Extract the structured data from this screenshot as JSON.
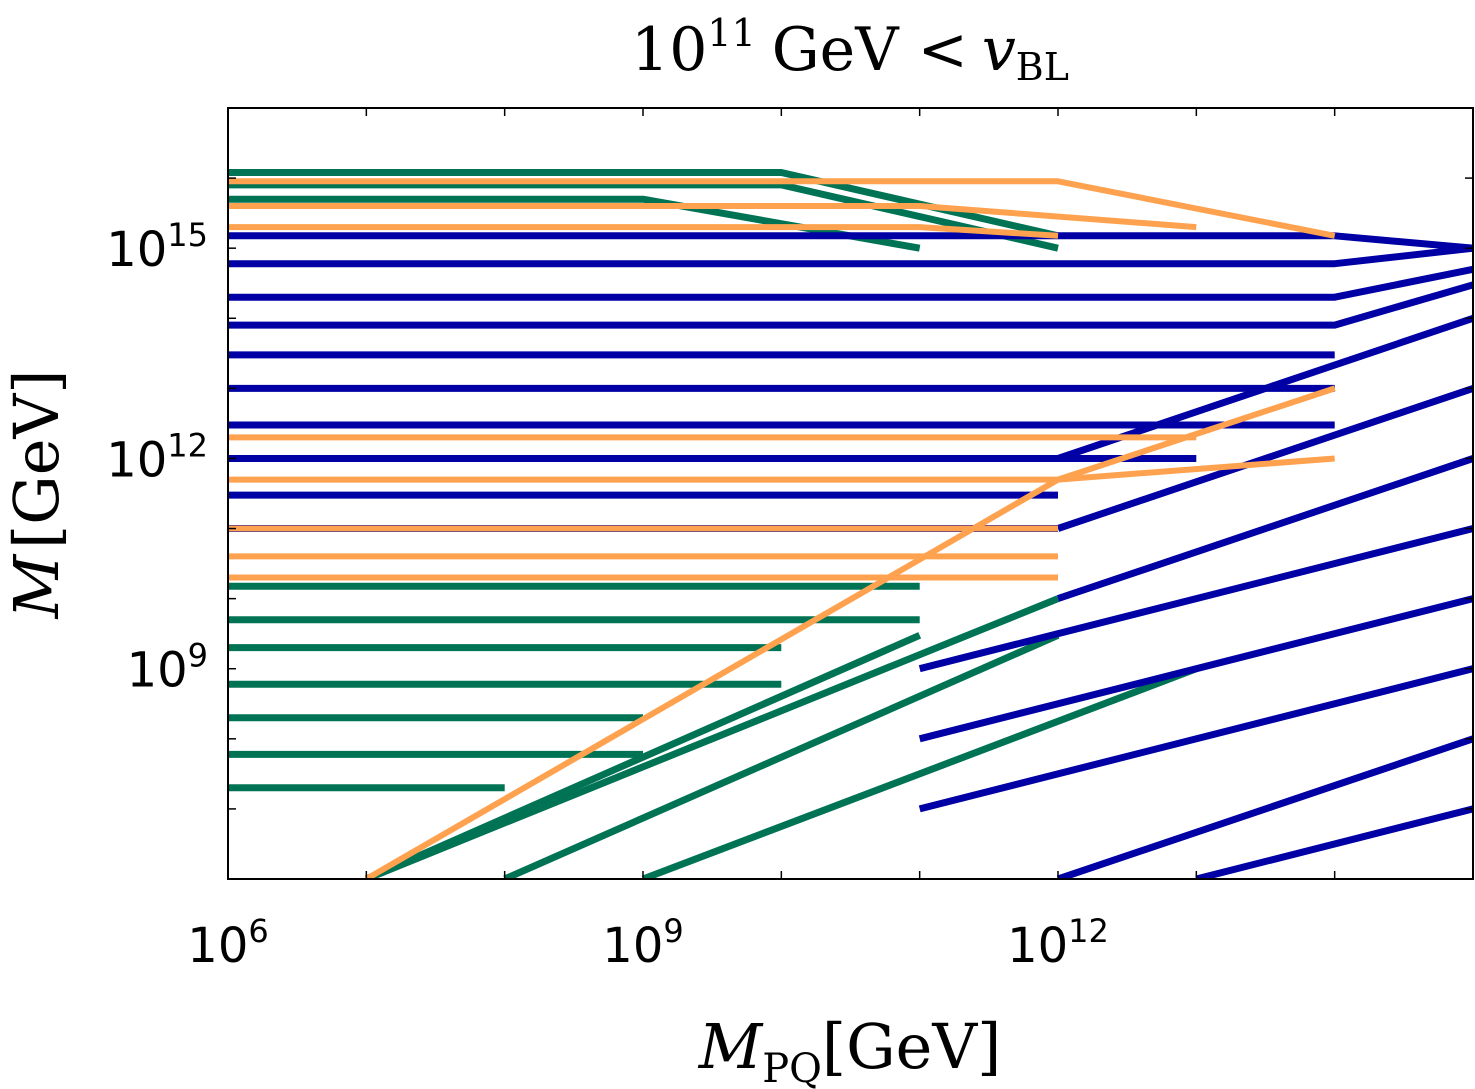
{
  "chart_data": {
    "type": "line",
    "title": {
      "base": "10",
      "exp": "11",
      "mid": "GeV <",
      "var": "v",
      "sub": "BL"
    },
    "xlabel": {
      "var": "M",
      "sub": "PQ",
      "unit": "[GeV]"
    },
    "ylabel": {
      "var": "M",
      "unit": "[GeV]"
    },
    "x_scale": "log",
    "y_scale": "log",
    "xlim": [
      1000000.0,
      1000000000000000.0
    ],
    "ylim": [
      1000000.0,
      1e+17
    ],
    "x_ticks": [
      {
        "value": 1000000.0,
        "base": "10",
        "exp": "6"
      },
      {
        "value": 1000000000.0,
        "base": "10",
        "exp": "9"
      },
      {
        "value": 1000000000000.0,
        "base": "10",
        "exp": "12"
      }
    ],
    "y_ticks": [
      {
        "value": 1000000000.0,
        "base": "10",
        "exp": "9"
      },
      {
        "value": 1000000000000.0,
        "base": "10",
        "exp": "12"
      },
      {
        "value": 1000000000000000.0,
        "base": "10",
        "exp": "15"
      }
    ],
    "grid": false,
    "legend": "none",
    "colors": {
      "green": "#007355",
      "blue": "#0000a5",
      "orange": "#ffa24f"
    },
    "series": [
      {
        "color": "green",
        "description_lines": [
          [
            [
              1000000.0,
              1.2e+16
            ],
            [
              10000000000.0,
              1.2e+16
            ],
            [
              1000000000000.0,
              1500000000000000.0
            ]
          ],
          [
            [
              1000000.0,
              8000000000000000.0
            ],
            [
              10000000000.0,
              8000000000000000.0
            ],
            [
              1000000000000.0,
              1000000000000000.0
            ]
          ],
          [
            [
              1000000.0,
              5000000000000000.0
            ],
            [
              1000000000.0,
              5000000000000000.0
            ],
            [
              100000000000.0,
              1000000000000000.0
            ]
          ],
          [
            [
              1000000.0,
              15000000000.0
            ],
            [
              100000000000.0,
              15000000000.0
            ]
          ],
          [
            [
              1000000.0,
              5000000000.0
            ],
            [
              100000000000.0,
              5000000000.0
            ]
          ],
          [
            [
              1000000.0,
              2000000000.0
            ],
            [
              10000000000.0,
              2000000000.0
            ]
          ],
          [
            [
              1000000.0,
              600000000.0
            ],
            [
              10000000000.0,
              600000000.0
            ]
          ],
          [
            [
              1000000.0,
              200000000.0
            ],
            [
              1000000000.0,
              200000000.0
            ]
          ],
          [
            [
              1000000.0,
              60000000.0
            ],
            [
              1000000000.0,
              60000000.0
            ]
          ],
          [
            [
              1000000.0,
              20000000.0
            ],
            [
              100000000.0,
              20000000.0
            ]
          ],
          [
            [
              10000000.0,
              1000000.0
            ],
            [
              100000000000.0,
              3000000000.0
            ]
          ],
          [
            [
              10000000.0,
              1000000.0
            ],
            [
              1000000000000.0,
              10000000000.0
            ]
          ],
          [
            [
              100000000.0,
              1000000.0
            ],
            [
              1000000000000.0,
              3000000000.0
            ]
          ],
          [
            [
              1000000000.0,
              1000000.0
            ],
            [
              10000000000000.0,
              1000000000.0
            ]
          ]
        ]
      },
      {
        "color": "blue",
        "description_lines": [
          [
            [
              1000000.0,
              1500000000000000.0
            ],
            [
              100000000000000.0,
              1500000000000000.0
            ],
            [
              1000000000000000.0,
              1000000000000000.0
            ]
          ],
          [
            [
              1000000.0,
              600000000000000.0
            ],
            [
              100000000000000.0,
              600000000000000.0
            ],
            [
              1000000000000000.0,
              1000000000000000.0
            ]
          ],
          [
            [
              1000000.0,
              200000000000000.0
            ],
            [
              100000000000000.0,
              200000000000000.0
            ],
            [
              1000000000000000.0,
              500000000000000.0
            ]
          ],
          [
            [
              1000000.0,
              80000000000000.0
            ],
            [
              100000000000000.0,
              80000000000000.0
            ],
            [
              1000000000000000.0,
              300000000000000.0
            ]
          ],
          [
            [
              1000000.0,
              30000000000000.0
            ],
            [
              100000000000000.0,
              30000000000000.0
            ]
          ],
          [
            [
              1000000.0,
              10000000000000.0
            ],
            [
              100000000000000.0,
              10000000000000.0
            ]
          ],
          [
            [
              1000000.0,
              3000000000000.0
            ],
            [
              100000000000000.0,
              3000000000000.0
            ]
          ],
          [
            [
              1000000.0,
              1000000000000.0
            ],
            [
              10000000000000.0,
              1000000000000.0
            ]
          ],
          [
            [
              1000000.0,
              300000000000.0
            ],
            [
              1000000000000.0,
              300000000000.0
            ]
          ],
          [
            [
              1000000.0,
              100000000000.0
            ],
            [
              1000000000000.0,
              100000000000.0
            ]
          ],
          [
            [
              1000000000000.0,
              1000000000000.0
            ],
            [
              1000000000000000.0,
              100000000000000.0
            ]
          ],
          [
            [
              1000000000000.0,
              100000000000.0
            ],
            [
              1000000000000000.0,
              10000000000000.0
            ]
          ],
          [
            [
              1000000000000.0,
              10000000000.0
            ],
            [
              1000000000000000.0,
              1000000000000.0
            ]
          ],
          [
            [
              100000000000.0,
              1000000000.0
            ],
            [
              1000000000000000.0,
              100000000000.0
            ]
          ],
          [
            [
              100000000000.0,
              100000000.0
            ],
            [
              1000000000000000.0,
              10000000000.0
            ]
          ],
          [
            [
              100000000000.0,
              10000000.0
            ],
            [
              1000000000000000.0,
              1000000000.0
            ]
          ],
          [
            [
              1000000000000.0,
              1000000.0
            ],
            [
              1000000000000000.0,
              100000000.0
            ]
          ],
          [
            [
              10000000000000.0,
              1000000.0
            ],
            [
              1000000000000000.0,
              10000000.0
            ]
          ]
        ]
      },
      {
        "color": "orange",
        "description_lines": [
          [
            [
              1000000.0,
              9000000000000000.0
            ],
            [
              1000000000000.0,
              9000000000000000.0
            ],
            [
              100000000000000.0,
              1500000000000000.0
            ]
          ],
          [
            [
              1000000.0,
              4000000000000000.0
            ],
            [
              100000000000.0,
              4000000000000000.0
            ],
            [
              10000000000000.0,
              2000000000000000.0
            ]
          ],
          [
            [
              1000000.0,
              2000000000000000.0
            ],
            [
              100000000000.0,
              2000000000000000.0
            ],
            [
              1000000000000.0,
              1500000000000000.0
            ]
          ],
          [
            [
              1000000.0,
              2000000000000.0
            ],
            [
              10000000000000.0,
              2000000000000.0
            ]
          ],
          [
            [
              1000000.0,
              500000000000.0
            ],
            [
              1000000000000.0,
              500000000000.0
            ],
            [
              100000000000000.0,
              1000000000000.0
            ]
          ],
          [
            [
              1000000.0,
              100000000000.0
            ],
            [
              1000000000000.0,
              100000000000.0
            ]
          ],
          [
            [
              1000000.0,
              40000000000.0
            ],
            [
              1000000000000.0,
              40000000000.0
            ]
          ],
          [
            [
              1000000.0,
              20000000000.0
            ],
            [
              1000000000000.0,
              20000000000.0
            ]
          ],
          [
            [
              10000000.0,
              1000000.0
            ],
            [
              1000000000000.0,
              500000000000.0
            ],
            [
              100000000000000.0,
              10000000000000.0
            ]
          ]
        ]
      }
    ]
  }
}
